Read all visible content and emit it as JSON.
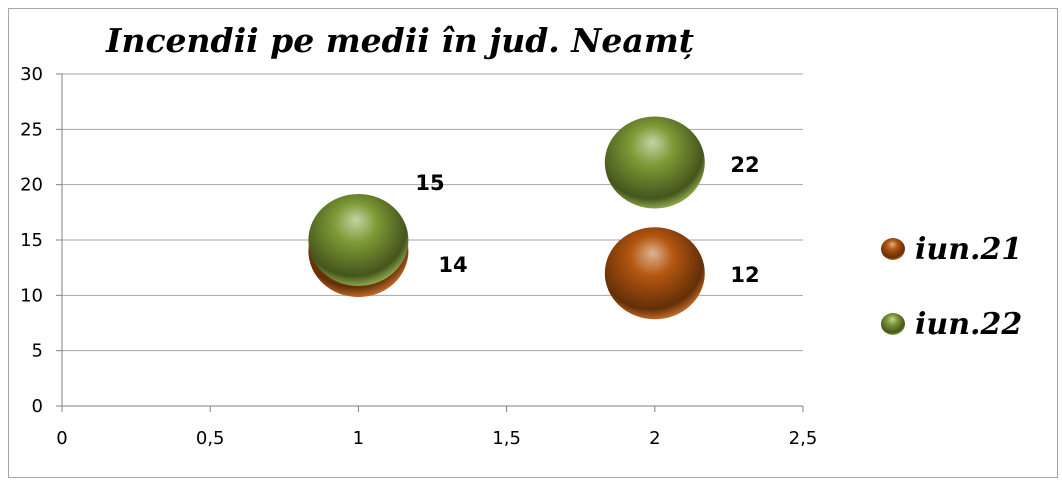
{
  "chart_data": {
    "type": "bubble",
    "title": "Incendii pe medii în jud. Neamț",
    "xlabel": "",
    "ylabel": "",
    "xlim": [
      0,
      2.5
    ],
    "ylim": [
      0,
      30
    ],
    "x_ticks": [
      "0",
      "0,5",
      "1",
      "1,5",
      "2",
      "2,5"
    ],
    "y_ticks": [
      "0",
      "5",
      "10",
      "15",
      "20",
      "25",
      "30"
    ],
    "grid": true,
    "legend_position": "right",
    "series": [
      {
        "name": "iun.21",
        "color": "#b4560f",
        "points": [
          {
            "x": 1,
            "y": 14,
            "label": "14"
          },
          {
            "x": 2,
            "y": 12,
            "label": "12"
          }
        ]
      },
      {
        "name": "iun.22",
        "color": "#7d9a35",
        "points": [
          {
            "x": 1,
            "y": 15,
            "label": "15"
          },
          {
            "x": 2,
            "y": 22,
            "label": "22"
          }
        ]
      }
    ]
  }
}
